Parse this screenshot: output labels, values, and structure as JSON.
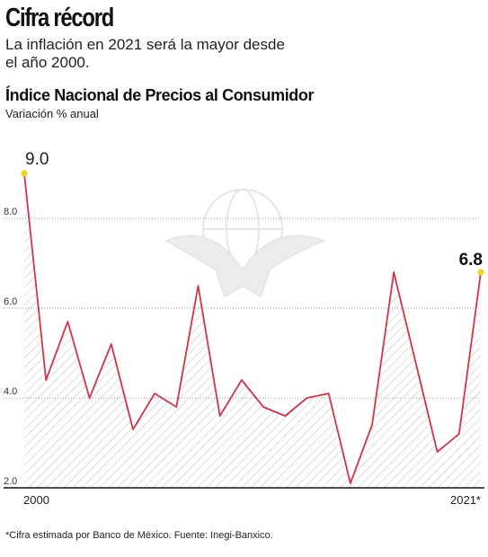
{
  "header": {
    "title": "Cifra récord",
    "subtitle": "La inflación en 2021 será la mayor desde el año 2000."
  },
  "chart_data": {
    "type": "area",
    "title": "Índice Nacional de Precios al Consumidor",
    "subtitle": "Variación % anual",
    "x": [
      2000,
      2001,
      2002,
      2003,
      2004,
      2005,
      2006,
      2007,
      2008,
      2009,
      2010,
      2011,
      2012,
      2013,
      2014,
      2015,
      2016,
      2017,
      2018,
      2019,
      2020,
      2021
    ],
    "x_tick_labels": [
      "2000",
      "2021*"
    ],
    "values": [
      9.0,
      4.4,
      5.7,
      4.0,
      5.2,
      3.3,
      4.1,
      3.8,
      6.5,
      3.6,
      4.4,
      3.8,
      3.6,
      4.0,
      4.1,
      2.1,
      3.4,
      6.8,
      4.8,
      2.8,
      3.2,
      6.8
    ],
    "ylim": [
      2.0,
      9.5
    ],
    "y_ticks": [
      "2.0",
      "4.0",
      "6.0",
      "8.0"
    ],
    "data_labels": {
      "first": "9.0",
      "last": "6.8"
    },
    "line_color": "#d6334a",
    "marker_color": "#f2d21b",
    "fill_pattern": "diagonal-hatch",
    "grid": "horizontal-dotted"
  },
  "footnote": "*Cifra estimada por Banco de México. Fuente: Inegi-Banxico."
}
